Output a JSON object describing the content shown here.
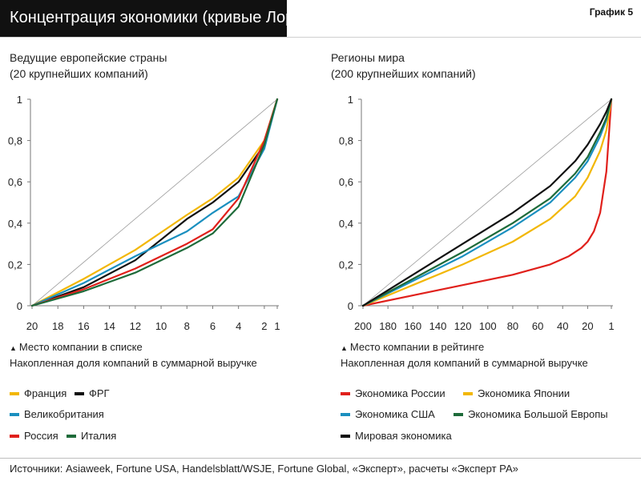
{
  "header": {
    "title": "Концентрация экономики (кривые Лоренца)",
    "graph_label": "График 5"
  },
  "panels": {
    "left": {
      "title_line1": "Ведущие европейские страны",
      "title_line2": "(20 крупнейших компаний)",
      "axis_note1": "Место компании в списке",
      "axis_note2": "Накопленная доля компаний в суммарной выручке"
    },
    "right": {
      "title_line1": "Регионы мира",
      "title_line2": "(200 крупнейших компаний)",
      "axis_note1": "Место компании в рейтинге",
      "axis_note2": "Накопленная доля компаний в суммарной выручке"
    }
  },
  "legend_left": [
    {
      "label": "Франция",
      "color": "#f2b705"
    },
    {
      "label": "ФРГ",
      "color": "#111111"
    },
    {
      "label": "Великобритания",
      "color": "#1a8fbf"
    },
    {
      "label": "Россия",
      "color": "#e0201b"
    },
    {
      "label": "Италия",
      "color": "#1e6b3a"
    }
  ],
  "legend_right": [
    {
      "label": "Экономика России",
      "color": "#e0201b"
    },
    {
      "label": "Экономика Японии",
      "color": "#f2b705"
    },
    {
      "label": "Экономика США",
      "color": "#1a8fbf"
    },
    {
      "label": "Экономика Большой Европы",
      "color": "#1e6b3a"
    },
    {
      "label": "Мировая экономика",
      "color": "#111111"
    }
  ],
  "sources": "Источники: Asiaweek, Fortune USA, Handelsblatt/WSJE, Fortune Global, «Эксперт», расчеты «Эксперт РА»",
  "chart_data": [
    {
      "type": "line",
      "title": "Ведущие европейские страны (20 крупнейших компаний)",
      "xlabel": "Место компании в списке",
      "ylabel": "Накопленная доля компаний в суммарной выручке",
      "x_ticks": [
        20,
        18,
        16,
        14,
        12,
        10,
        8,
        6,
        4,
        2,
        1
      ],
      "xlim": [
        20,
        1
      ],
      "y_ticks": [
        "0",
        "0,2",
        "0,4",
        "0,6",
        "0,8",
        "1"
      ],
      "ylim": [
        0,
        1
      ],
      "diagonal": true,
      "series": [
        {
          "name": "Франция",
          "color": "#f2b705",
          "x": [
            20,
            16,
            12,
            8,
            6,
            4,
            2,
            1
          ],
          "y": [
            0,
            0.13,
            0.27,
            0.44,
            0.52,
            0.62,
            0.8,
            1
          ]
        },
        {
          "name": "ФРГ",
          "color": "#111111",
          "x": [
            20,
            16,
            12,
            8,
            6,
            4,
            2,
            1
          ],
          "y": [
            0,
            0.09,
            0.22,
            0.42,
            0.5,
            0.6,
            0.78,
            1
          ]
        },
        {
          "name": "Великобритания",
          "color": "#1a8fbf",
          "x": [
            20,
            16,
            12,
            8,
            6,
            4,
            2,
            1
          ],
          "y": [
            0,
            0.11,
            0.24,
            0.36,
            0.45,
            0.53,
            0.76,
            1
          ]
        },
        {
          "name": "Россия",
          "color": "#e0201b",
          "x": [
            20,
            16,
            12,
            8,
            6,
            4,
            2,
            1
          ],
          "y": [
            0,
            0.08,
            0.18,
            0.3,
            0.37,
            0.52,
            0.8,
            1
          ]
        },
        {
          "name": "Италия",
          "color": "#1e6b3a",
          "x": [
            20,
            16,
            12,
            8,
            6,
            4,
            2,
            1
          ],
          "y": [
            0,
            0.07,
            0.16,
            0.28,
            0.35,
            0.48,
            0.78,
            1
          ]
        }
      ]
    },
    {
      "type": "line",
      "title": "Регионы мира (200 крупнейших компаний)",
      "xlabel": "Место компании в рейтинге",
      "ylabel": "Накопленная доля компаний в суммарной выручке",
      "x_ticks": [
        200,
        180,
        160,
        140,
        120,
        100,
        80,
        60,
        40,
        20,
        1
      ],
      "xlim": [
        200,
        1
      ],
      "y_ticks": [
        "0",
        "0,2",
        "0,4",
        "0,6",
        "0,8",
        "1"
      ],
      "ylim": [
        0,
        1
      ],
      "diagonal": true,
      "series": [
        {
          "name": "Экономика России",
          "color": "#e0201b",
          "x": [
            200,
            160,
            120,
            80,
            50,
            35,
            25,
            20,
            15,
            10,
            5,
            1
          ],
          "y": [
            0,
            0.05,
            0.1,
            0.15,
            0.2,
            0.24,
            0.28,
            0.31,
            0.36,
            0.45,
            0.65,
            1
          ]
        },
        {
          "name": "Экономика Японии",
          "color": "#f2b705",
          "x": [
            200,
            160,
            120,
            80,
            50,
            30,
            20,
            10,
            5,
            1
          ],
          "y": [
            0,
            0.1,
            0.2,
            0.31,
            0.42,
            0.53,
            0.62,
            0.75,
            0.85,
            1
          ]
        },
        {
          "name": "Экономика США",
          "color": "#1a8fbf",
          "x": [
            200,
            160,
            120,
            80,
            50,
            30,
            20,
            10,
            5,
            1
          ],
          "y": [
            0,
            0.12,
            0.24,
            0.38,
            0.5,
            0.62,
            0.7,
            0.82,
            0.9,
            1
          ]
        },
        {
          "name": "Экономика Большой Европы",
          "color": "#1e6b3a",
          "x": [
            200,
            160,
            120,
            80,
            50,
            30,
            20,
            10,
            5,
            1
          ],
          "y": [
            0,
            0.13,
            0.26,
            0.4,
            0.52,
            0.64,
            0.72,
            0.84,
            0.91,
            1
          ]
        },
        {
          "name": "Мировая экономика",
          "color": "#111111",
          "x": [
            200,
            160,
            120,
            80,
            50,
            30,
            20,
            10,
            5,
            1
          ],
          "y": [
            0,
            0.15,
            0.3,
            0.45,
            0.58,
            0.7,
            0.78,
            0.88,
            0.94,
            1
          ]
        }
      ]
    }
  ]
}
